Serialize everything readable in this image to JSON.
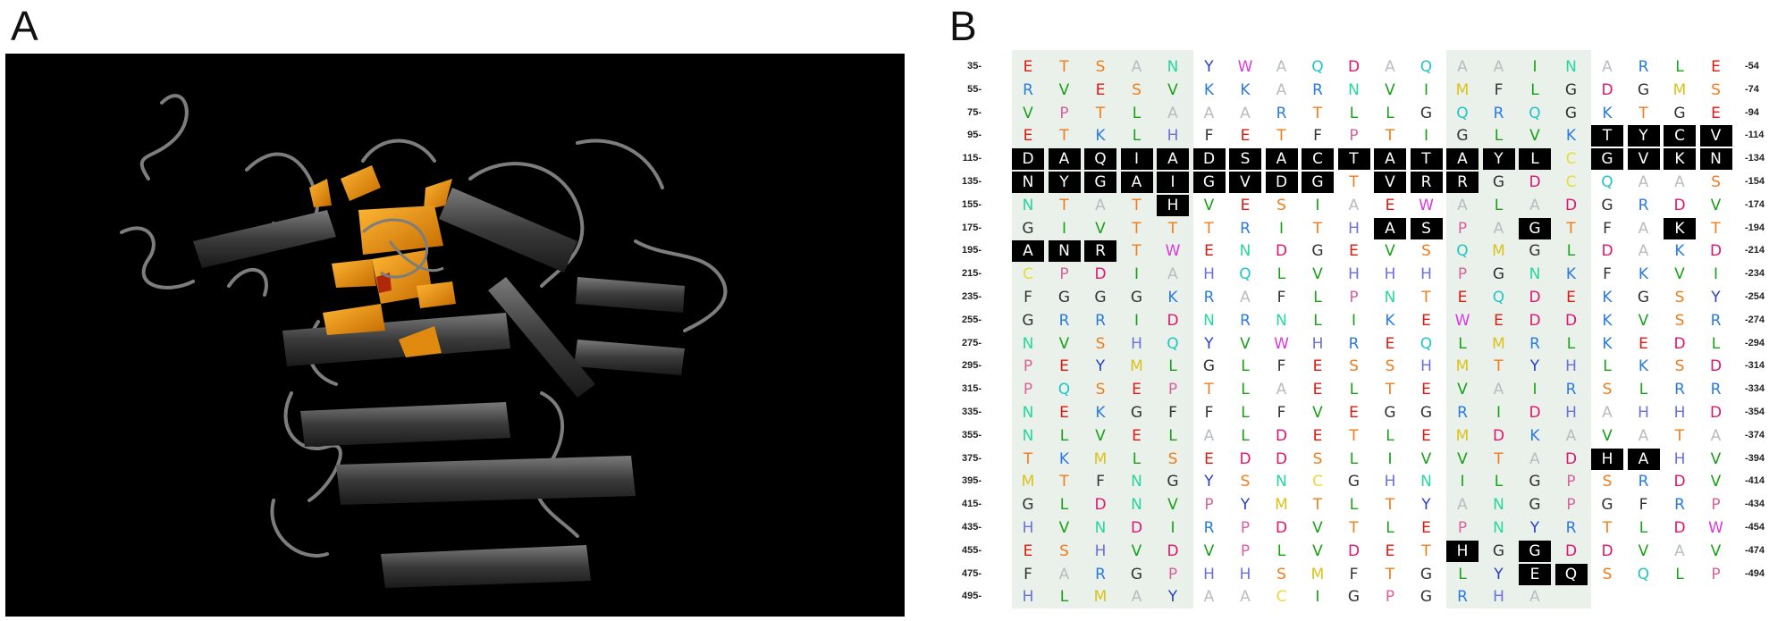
{
  "panels": {
    "a_label": "A",
    "b_label": "B"
  },
  "colors": {
    "background": "#000000",
    "protein_ribbon": "#9a9a9a",
    "highlight_ribbon": "#f0a020",
    "residue_highlight_bg": "#000000",
    "block_shade": "#e8efe9"
  },
  "residue_colors": {
    "A": "#b9bcc0",
    "R": "#2a7be0",
    "N": "#27d6a0",
    "D": "#e0146e",
    "C": "#e8dc36",
    "Q": "#22c4c4",
    "E": "#e01810",
    "G": "#333333",
    "H": "#6a72d8",
    "I": "#19a019",
    "L": "#19a019",
    "K": "#2a7be0",
    "M": "#dac21a",
    "F": "#333333",
    "P": "#d8629a",
    "S": "#f07d1c",
    "T": "#f07d1c",
    "W": "#d83adc",
    "Y": "#2640c0",
    "V": "#19a019"
  },
  "sequence": {
    "rows": [
      {
        "start": "35-",
        "end": "-54",
        "residues": "ETSANYWAQDAQAAINARLE"
      },
      {
        "start": "55-",
        "end": "-74",
        "residues": "RVESVKKARNVIMFLGDGMS"
      },
      {
        "start": "75-",
        "end": "-94",
        "residues": "VPTLAAARTLLGQRQGKTGE"
      },
      {
        "start": "95-",
        "end": "-114",
        "residues": "ETKLHFETFPTIGLVKTYCV"
      },
      {
        "start": "115-",
        "end": "-134",
        "residues": "DAQIADSACTATAYLCGVKN"
      },
      {
        "start": "135-",
        "end": "-154",
        "residues": "NYGAIGVDGTVRRGDCQAAS"
      },
      {
        "start": "155-",
        "end": "-174",
        "residues": "NTATHVESIAEWALADGRDV"
      },
      {
        "start": "175-",
        "end": "-194",
        "residues": "GIVTTTRITHASPAGTFAKT"
      },
      {
        "start": "195-",
        "end": "-214",
        "residues": "ANRTWENDGEVSQMGLDAKD"
      },
      {
        "start": "215-",
        "end": "-234",
        "residues": "CPDIAHQLVHHHPGNKFKVI"
      },
      {
        "start": "235-",
        "end": "-254",
        "residues": "FGGGKRAFLPNTEQDEKGSY"
      },
      {
        "start": "255-",
        "end": "-274",
        "residues": "GRRIDNRNLIKEWEDDKVSR"
      },
      {
        "start": "275-",
        "end": "-294",
        "residues": "NVSHQYVWHREQLMRLKEDL"
      },
      {
        "start": "295-",
        "end": "-314",
        "residues": "PEYMLGLFESSHMTYHLKSD"
      },
      {
        "start": "315-",
        "end": "-334",
        "residues": "PQSEPTLAELTEVAIRSLRR"
      },
      {
        "start": "335-",
        "end": "-354",
        "residues": "NEKGFFLFVEGGRIDHAHHD"
      },
      {
        "start": "355-",
        "end": "-374",
        "residues": "NLVELALDETLEMDKAVATA"
      },
      {
        "start": "375-",
        "end": "-394",
        "residues": "TKMLSEDDSLIVVTADHAHV"
      },
      {
        "start": "395-",
        "end": "-414",
        "residues": "MTFNGYSNCGHNILGPSRDV"
      },
      {
        "start": "415-",
        "end": "-434",
        "residues": "GLDNVPYMTLTYANGPGFRP"
      },
      {
        "start": "435-",
        "end": "-454",
        "residues": "HVNDIRPDVTLEPNYRTLDW"
      },
      {
        "start": "455-",
        "end": "-474",
        "residues": "ESHVDVPLVDETHGGDDVAV"
      },
      {
        "start": "475-",
        "end": "-494",
        "residues": "FARGPHHSMFTGLYEQSQLP"
      },
      {
        "start": "495-",
        "end": "",
        "residues": "HLMAYAACIGPGRHA"
      }
    ],
    "highlights": [
      [
        3,
        16
      ],
      [
        3,
        17
      ],
      [
        3,
        18
      ],
      [
        3,
        19
      ],
      [
        4,
        0
      ],
      [
        4,
        1
      ],
      [
        4,
        2
      ],
      [
        4,
        3
      ],
      [
        4,
        4
      ],
      [
        4,
        5
      ],
      [
        4,
        6
      ],
      [
        4,
        7
      ],
      [
        4,
        8
      ],
      [
        4,
        9
      ],
      [
        4,
        10
      ],
      [
        4,
        11
      ],
      [
        4,
        12
      ],
      [
        4,
        13
      ],
      [
        4,
        14
      ],
      [
        4,
        16
      ],
      [
        4,
        17
      ],
      [
        4,
        18
      ],
      [
        4,
        19
      ],
      [
        5,
        0
      ],
      [
        5,
        1
      ],
      [
        5,
        2
      ],
      [
        5,
        3
      ],
      [
        5,
        4
      ],
      [
        5,
        5
      ],
      [
        5,
        6
      ],
      [
        5,
        7
      ],
      [
        5,
        8
      ],
      [
        5,
        10
      ],
      [
        5,
        11
      ],
      [
        5,
        12
      ],
      [
        6,
        4
      ],
      [
        7,
        10
      ],
      [
        7,
        11
      ],
      [
        7,
        14
      ],
      [
        7,
        18
      ],
      [
        8,
        0
      ],
      [
        8,
        1
      ],
      [
        8,
        2
      ],
      [
        17,
        16
      ],
      [
        17,
        17
      ],
      [
        21,
        12
      ],
      [
        21,
        14
      ],
      [
        22,
        14
      ],
      [
        22,
        15
      ]
    ]
  }
}
